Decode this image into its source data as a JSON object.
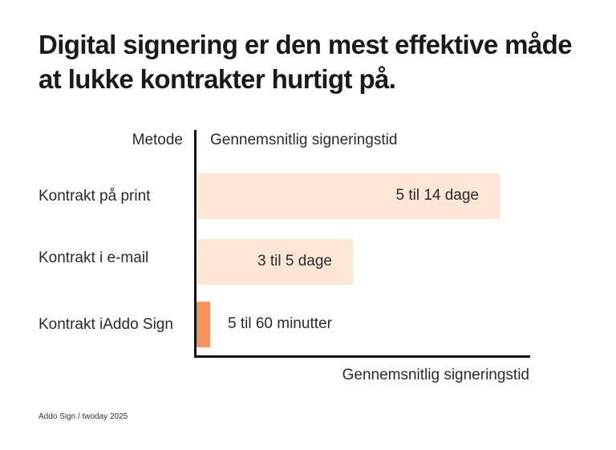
{
  "title": "Digital signering er den mest effektive måde at lukke kontrakter hurtigt på.",
  "source": "Addo Sign / twoday 2025",
  "chart_data": {
    "type": "bar",
    "orientation": "horizontal",
    "header_left": "Metode",
    "header_right": "Gennemsnitlig signeringstid",
    "xlabel": "Gennemsnitlig signeringstid",
    "grid": false,
    "legend": "none",
    "categories": [
      "Kontrakt på print",
      "Kontrakt i e-mail",
      "Kontrakt iAddo Sign"
    ],
    "data_labels": [
      "5 til 14 dage",
      "3 til 5 dage",
      "5 til 60 minutter"
    ],
    "bar_lengths": [
      0.91,
      0.47,
      0.04
    ],
    "colors": [
      "#fde6d6",
      "#fde6d6",
      "#f4935c"
    ]
  }
}
